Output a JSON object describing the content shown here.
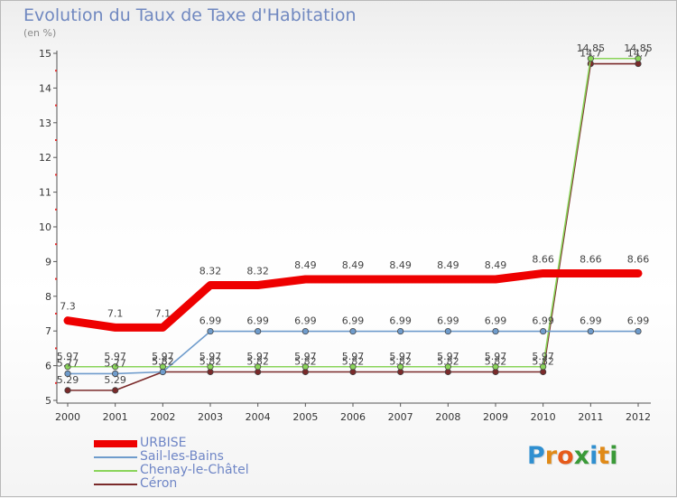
{
  "title": "Evolution du Taux de Taxe d'Habitation",
  "subtitle": "(en %)",
  "logo": {
    "text": "Proxiti",
    "letter_colors": [
      "#2f8fd0",
      "#e08a18",
      "#e65a1a",
      "#3a9a38",
      "#2f8fd0",
      "#e08a18",
      "#3a9a38"
    ]
  },
  "chart_data": {
    "type": "line",
    "x": [
      "2000",
      "2001",
      "2002",
      "2003",
      "2004",
      "2005",
      "2006",
      "2007",
      "2008",
      "2009",
      "2010",
      "2011",
      "2012"
    ],
    "ylim": [
      5,
      15
    ],
    "yticks": [
      "5",
      "6",
      "7",
      "8",
      "9",
      "10",
      "11",
      "12",
      "13",
      "14",
      "15"
    ],
    "grid": false,
    "legend_position": "bottom-left",
    "series": [
      {
        "name": "URBISE",
        "color": "#ee0000",
        "values": [
          7.3,
          7.1,
          7.1,
          8.32,
          8.32,
          8.49,
          8.49,
          8.49,
          8.49,
          8.49,
          8.66,
          8.66,
          8.66
        ],
        "labels": [
          "7.3",
          "7.1",
          "7.1",
          "8.32",
          "8.32",
          "8.49",
          "8.49",
          "8.49",
          "8.49",
          "8.49",
          "8.66",
          "8.66",
          "8.66"
        ]
      },
      {
        "name": "Sail-les-Bains",
        "color": "#6f9ccc",
        "values": [
          5.77,
          5.77,
          5.82,
          6.99,
          6.99,
          6.99,
          6.99,
          6.99,
          6.99,
          6.99,
          6.99,
          6.99,
          6.99
        ],
        "labels": [
          "5.77",
          "5.77",
          "5.82",
          "6.99",
          "6.99",
          "6.99",
          "6.99",
          "6.99",
          "6.99",
          "6.99",
          "6.99",
          "6.99",
          "6.99"
        ]
      },
      {
        "name": "Chenay-le-Châtel",
        "color": "#8ad45a",
        "values": [
          5.97,
          5.97,
          5.97,
          5.97,
          5.97,
          5.97,
          5.97,
          5.97,
          5.97,
          5.97,
          5.97,
          14.85,
          14.85
        ],
        "labels": [
          "5.97",
          "5.97",
          "5.97",
          "5.97",
          "5.97",
          "5.97",
          "5.97",
          "5.97",
          "5.97",
          "5.97",
          "5.97",
          "14.85",
          "14.85"
        ]
      },
      {
        "name": "Céron",
        "color": "#7a2a2a",
        "values": [
          5.29,
          5.29,
          5.82,
          5.82,
          5.82,
          5.82,
          5.82,
          5.82,
          5.82,
          5.82,
          5.82,
          14.7,
          14.7
        ],
        "labels": [
          "5.29",
          "5.29",
          "5.82",
          "5.82",
          "5.82",
          "5.82",
          "5.82",
          "5.82",
          "5.82",
          "5.82",
          "5.82",
          "14.7",
          "14.7"
        ]
      }
    ]
  }
}
